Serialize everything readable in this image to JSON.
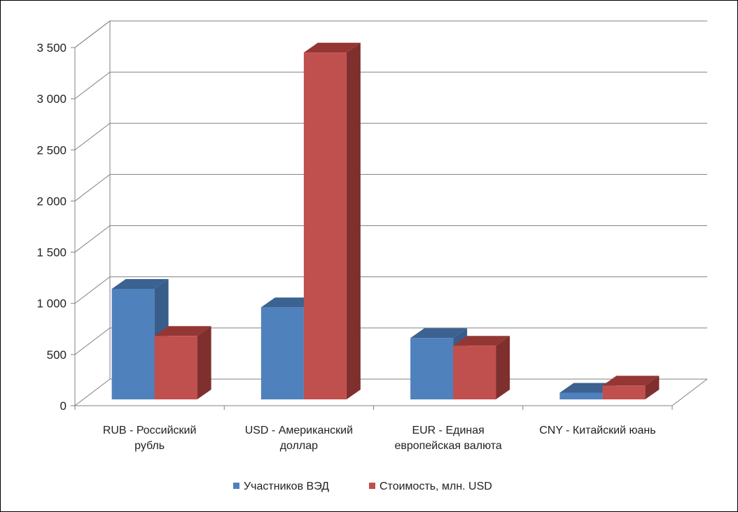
{
  "chart_data": {
    "type": "bar",
    "categories": [
      [
        "RUB - Российский",
        "рубль"
      ],
      [
        "USD - Американский",
        "доллар"
      ],
      [
        "EUR - Единая",
        "европейская валюта"
      ],
      [
        "CNY - Китайский юань"
      ]
    ],
    "series": [
      {
        "name": "Участников ВЭД",
        "values": [
          1080,
          900,
          600,
          65
        ],
        "color": "#4f81bd",
        "side_color": "#385d8a",
        "top_color": "#3b6290"
      },
      {
        "name": "Стоимость, млн. USD",
        "values": [
          620,
          3390,
          525,
          135
        ],
        "color": "#c0504d",
        "side_color": "#7f2f2d",
        "top_color": "#943734"
      }
    ],
    "ylim": [
      0,
      3500
    ],
    "yticks": [
      0,
      500,
      1000,
      1500,
      2000,
      2500,
      3000,
      3500
    ],
    "ytick_labels": [
      "0",
      "500",
      "1 000",
      "1 500",
      "2 000",
      "2 500",
      "3 000",
      "3 500"
    ],
    "grid": true,
    "style": "3d-clustered-column",
    "legend_position": "bottom"
  }
}
